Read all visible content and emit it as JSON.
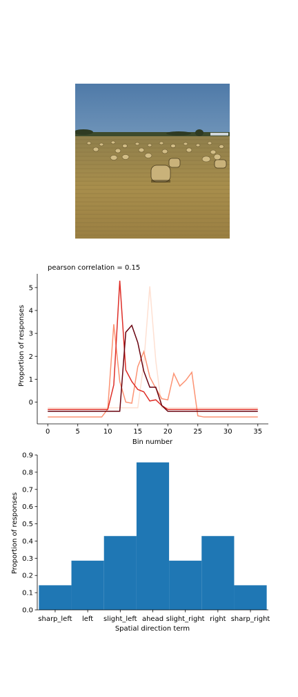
{
  "chart_data": [
    {
      "type": "line",
      "title": "pearson correlation = 0.15",
      "xlabel": "Bin number",
      "ylabel": "Proportion of responses",
      "xlim": [
        -1.75,
        36.75
      ],
      "ylim": [
        -0.95,
        5.6
      ],
      "xticks": [
        0,
        5,
        10,
        15,
        20,
        25,
        30,
        35
      ],
      "yticks": [
        0,
        1,
        2,
        3,
        4,
        5
      ],
      "grid": false,
      "x": [
        0,
        1,
        2,
        3,
        4,
        5,
        6,
        7,
        8,
        9,
        10,
        11,
        12,
        13,
        14,
        15,
        16,
        17,
        18,
        19,
        20,
        21,
        22,
        23,
        24,
        25,
        26,
        27,
        28,
        29,
        30,
        31,
        32,
        33,
        34,
        35
      ],
      "series": [
        {
          "color": "#fee0d2",
          "values": [
            -0.25,
            -0.25,
            -0.25,
            -0.25,
            -0.25,
            -0.25,
            -0.25,
            -0.25,
            -0.25,
            -0.25,
            -0.25,
            -0.25,
            -0.25,
            -0.25,
            -0.25,
            -0.25,
            1.7,
            5.05,
            1.8,
            -0.25,
            -0.25,
            -0.25,
            -0.25,
            -0.25,
            -0.25,
            -0.25,
            -0.25,
            -0.25,
            -0.25,
            -0.25,
            -0.25,
            -0.25,
            -0.25,
            -0.25,
            -0.25,
            -0.25
          ]
        },
        {
          "color": "#fc9272",
          "values": [
            -0.65,
            -0.65,
            -0.65,
            -0.65,
            -0.65,
            -0.65,
            -0.65,
            -0.65,
            -0.65,
            -0.65,
            -0.3,
            3.4,
            0.9,
            0.0,
            -0.05,
            1.55,
            2.2,
            1.1,
            0.6,
            0.15,
            0.1,
            1.25,
            0.7,
            0.95,
            1.3,
            -0.6,
            -0.65,
            -0.65,
            -0.65,
            -0.65,
            -0.65,
            -0.65,
            -0.65,
            -0.65,
            -0.65,
            -0.65
          ]
        },
        {
          "color": "#de2d26",
          "values": [
            -0.32,
            -0.32,
            -0.32,
            -0.32,
            -0.32,
            -0.32,
            -0.32,
            -0.32,
            -0.32,
            -0.32,
            -0.32,
            0.75,
            5.3,
            1.4,
            0.9,
            0.55,
            0.45,
            0.05,
            0.1,
            -0.15,
            -0.32,
            -0.32,
            -0.32,
            -0.32,
            -0.32,
            -0.32,
            -0.32,
            -0.32,
            -0.32,
            -0.32,
            -0.32,
            -0.32,
            -0.32,
            -0.32,
            -0.32,
            -0.32
          ]
        },
        {
          "color": "#67000d",
          "values": [
            -0.4,
            -0.4,
            -0.4,
            -0.4,
            -0.4,
            -0.4,
            -0.4,
            -0.4,
            -0.4,
            -0.4,
            -0.4,
            -0.4,
            -0.4,
            3.05,
            3.35,
            2.6,
            1.35,
            0.65,
            0.65,
            -0.15,
            -0.4,
            -0.4,
            -0.4,
            -0.4,
            -0.4,
            -0.4,
            -0.4,
            -0.4,
            -0.4,
            -0.4,
            -0.4,
            -0.4,
            -0.4,
            -0.4,
            -0.4,
            -0.4
          ]
        }
      ]
    },
    {
      "type": "bar",
      "xlabel": "Spatial direction term",
      "ylabel": "Proportion of responses",
      "categories": [
        "sharp_left",
        "left",
        "slight_left",
        "ahead",
        "slight_right",
        "right",
        "sharp_right"
      ],
      "values": [
        0.143,
        0.286,
        0.429,
        0.857,
        0.286,
        0.429,
        0.143
      ],
      "ylim": [
        0,
        0.9
      ],
      "yticks": [
        "0.0",
        "0.1",
        "0.2",
        "0.3",
        "0.4",
        "0.5",
        "0.6",
        "0.7",
        "0.8",
        "0.9"
      ],
      "bar_color": "#1f77b4",
      "grid": false
    }
  ]
}
